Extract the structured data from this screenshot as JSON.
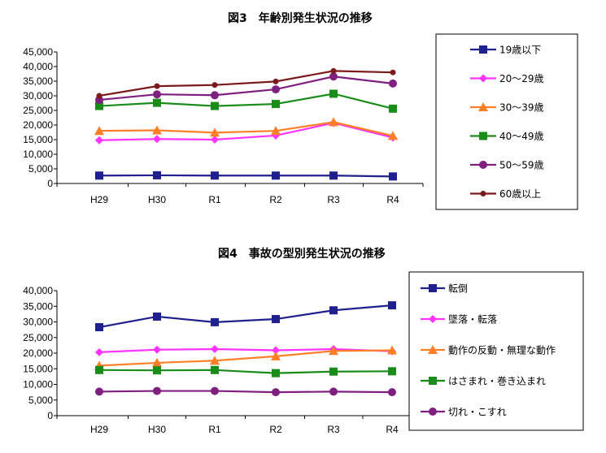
{
  "chart_data": [
    {
      "type": "line",
      "title": "図3　年齢別発生状況の推移",
      "categories": [
        "H29",
        "H30",
        "R1",
        "R2",
        "R3",
        "R4"
      ],
      "ylim": [
        0,
        45000
      ],
      "yticks": [
        0,
        5000,
        10000,
        15000,
        20000,
        25000,
        30000,
        35000,
        40000,
        45000
      ],
      "ytick_labels": [
        "0",
        "5,000",
        "10,000",
        "15,000",
        "20,000",
        "25,000",
        "30,000",
        "35,000",
        "40,000",
        "45,000"
      ],
      "legend_position": "right",
      "series": [
        {
          "name": "19歳以下",
          "color": "#1f1f8f",
          "marker": "square",
          "values": [
            2700,
            2800,
            2700,
            2700,
            2700,
            2400
          ]
        },
        {
          "name": "20～29歳",
          "color": "#ff33ff",
          "marker": "diamond",
          "values": [
            14800,
            15200,
            15000,
            16400,
            20700,
            15700
          ]
        },
        {
          "name": "30～39歳",
          "color": "#ff7f27",
          "marker": "triangle",
          "values": [
            18000,
            18200,
            17400,
            18000,
            21000,
            16300
          ]
        },
        {
          "name": "40～49歳",
          "color": "#1a8c1a",
          "marker": "square",
          "values": [
            26500,
            27600,
            26500,
            27200,
            30700,
            25600
          ]
        },
        {
          "name": "50～59歳",
          "color": "#7f1f7f",
          "marker": "circle",
          "values": [
            28600,
            30500,
            30200,
            32200,
            36600,
            34200
          ]
        },
        {
          "name": "60歳以上",
          "color": "#7a1a1a",
          "marker": "smallcircle",
          "values": [
            30000,
            33300,
            33700,
            34900,
            38500,
            38000
          ]
        }
      ]
    },
    {
      "type": "line",
      "title": "図4　事故の型別発生状況の推移",
      "categories": [
        "H29",
        "H30",
        "R1",
        "R2",
        "R3",
        "R4"
      ],
      "ylim": [
        0,
        40000
      ],
      "yticks": [
        0,
        5000,
        10000,
        15000,
        20000,
        25000,
        30000,
        35000,
        40000
      ],
      "ytick_labels": [
        "0",
        "5,000",
        "10,000",
        "15,000",
        "20,000",
        "25,000",
        "30,000",
        "35,000",
        "40,000"
      ],
      "legend_position": "right",
      "series": [
        {
          "name": "転倒",
          "color": "#1f1f8f",
          "marker": "square",
          "values": [
            28300,
            31700,
            29900,
            30900,
            33700,
            35300
          ]
        },
        {
          "name": "墜落・転落",
          "color": "#ff33ff",
          "marker": "diamond",
          "values": [
            20300,
            21100,
            21300,
            20900,
            21300,
            20600
          ]
        },
        {
          "name": "動作の反動・無理な動作",
          "color": "#ff7f27",
          "marker": "triangle",
          "values": [
            16000,
            16900,
            17600,
            19000,
            20700,
            20900
          ]
        },
        {
          "name": "はさまれ・巻き込まれ",
          "color": "#1a8c1a",
          "marker": "square",
          "values": [
            14600,
            14500,
            14600,
            13600,
            14100,
            14200
          ]
        },
        {
          "name": "切れ・こすれ",
          "color": "#7f1f7f",
          "marker": "circle",
          "values": [
            7700,
            7900,
            7900,
            7500,
            7700,
            7500
          ]
        }
      ]
    }
  ]
}
